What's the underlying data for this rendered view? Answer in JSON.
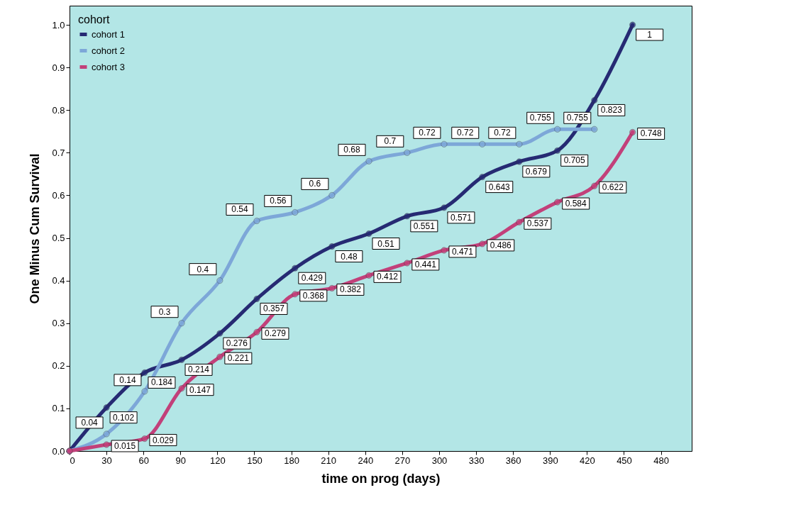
{
  "chart_data": {
    "type": "line",
    "xlabel": "time on prog (days)",
    "ylabel": "One Minus Cum Survival",
    "legend_title": "cohort",
    "legend": "top left",
    "marker": "circle",
    "xlim": [
      0,
      505
    ],
    "xticks": [
      0,
      30,
      60,
      90,
      120,
      150,
      180,
      210,
      240,
      270,
      300,
      330,
      360,
      390,
      420,
      450,
      480
    ],
    "ylim": [
      0,
      1.045
    ],
    "yticks": [
      {
        "value": 0,
        "label": "0.0"
      },
      0.1,
      0.2,
      0.3,
      0.4,
      0.5,
      0.6,
      0.7,
      0.8,
      0.9,
      {
        "value": 1,
        "label": "1.0"
      }
    ],
    "grid": false,
    "x": [
      0,
      30,
      61,
      91,
      122,
      152,
      183,
      213,
      243,
      274,
      304,
      335,
      365,
      396,
      426,
      457
    ],
    "series": [
      {
        "name": "cohort 1",
        "color": "#262a73",
        "values": [
          0,
          0.102,
          0.184,
          0.214,
          0.276,
          0.357,
          0.429,
          0.48,
          0.51,
          0.551,
          0.571,
          0.643,
          0.679,
          0.705,
          0.823,
          1
        ],
        "value_labels": [
          null,
          "0.102",
          "0.184",
          "0.214",
          "0.276",
          "0.357",
          "0.429",
          "0.48",
          "0.51",
          "0.551",
          "0.571",
          "0.643",
          "0.679",
          "0.705",
          "0.823",
          "1"
        ]
      },
      {
        "name": "cohort 2",
        "color": "#7da7d8",
        "x": [
          0,
          30,
          61,
          91,
          122,
          152,
          183,
          213,
          243,
          274,
          304,
          335,
          365,
          396,
          426
        ],
        "values": [
          0,
          0.04,
          0.14,
          0.3,
          0.4,
          0.54,
          0.56,
          0.6,
          0.68,
          0.7,
          0.72,
          0.72,
          0.72,
          0.755,
          0.755
        ],
        "value_labels": [
          null,
          "0.04",
          "0.14",
          "0.3",
          "0.4",
          "0.54",
          "0.56",
          "0.6",
          "0.68",
          "0.7",
          "0.72",
          "0.72",
          "0.72",
          "0.755",
          "0.755"
        ]
      },
      {
        "name": "cohort 3",
        "color": "#c2407a",
        "values": [
          0,
          0.015,
          0.029,
          0.147,
          0.221,
          0.279,
          0.368,
          0.382,
          0.412,
          0.441,
          0.471,
          0.486,
          0.537,
          0.584,
          0.622,
          0.748
        ],
        "value_labels": [
          null,
          "0.015",
          "0.029",
          "0.147",
          "0.221",
          "0.279",
          "0.368",
          "0.382",
          "0.412",
          "0.441",
          "0.471",
          "0.486",
          "0.537",
          "0.584",
          "0.622",
          "0.748"
        ]
      }
    ]
  }
}
